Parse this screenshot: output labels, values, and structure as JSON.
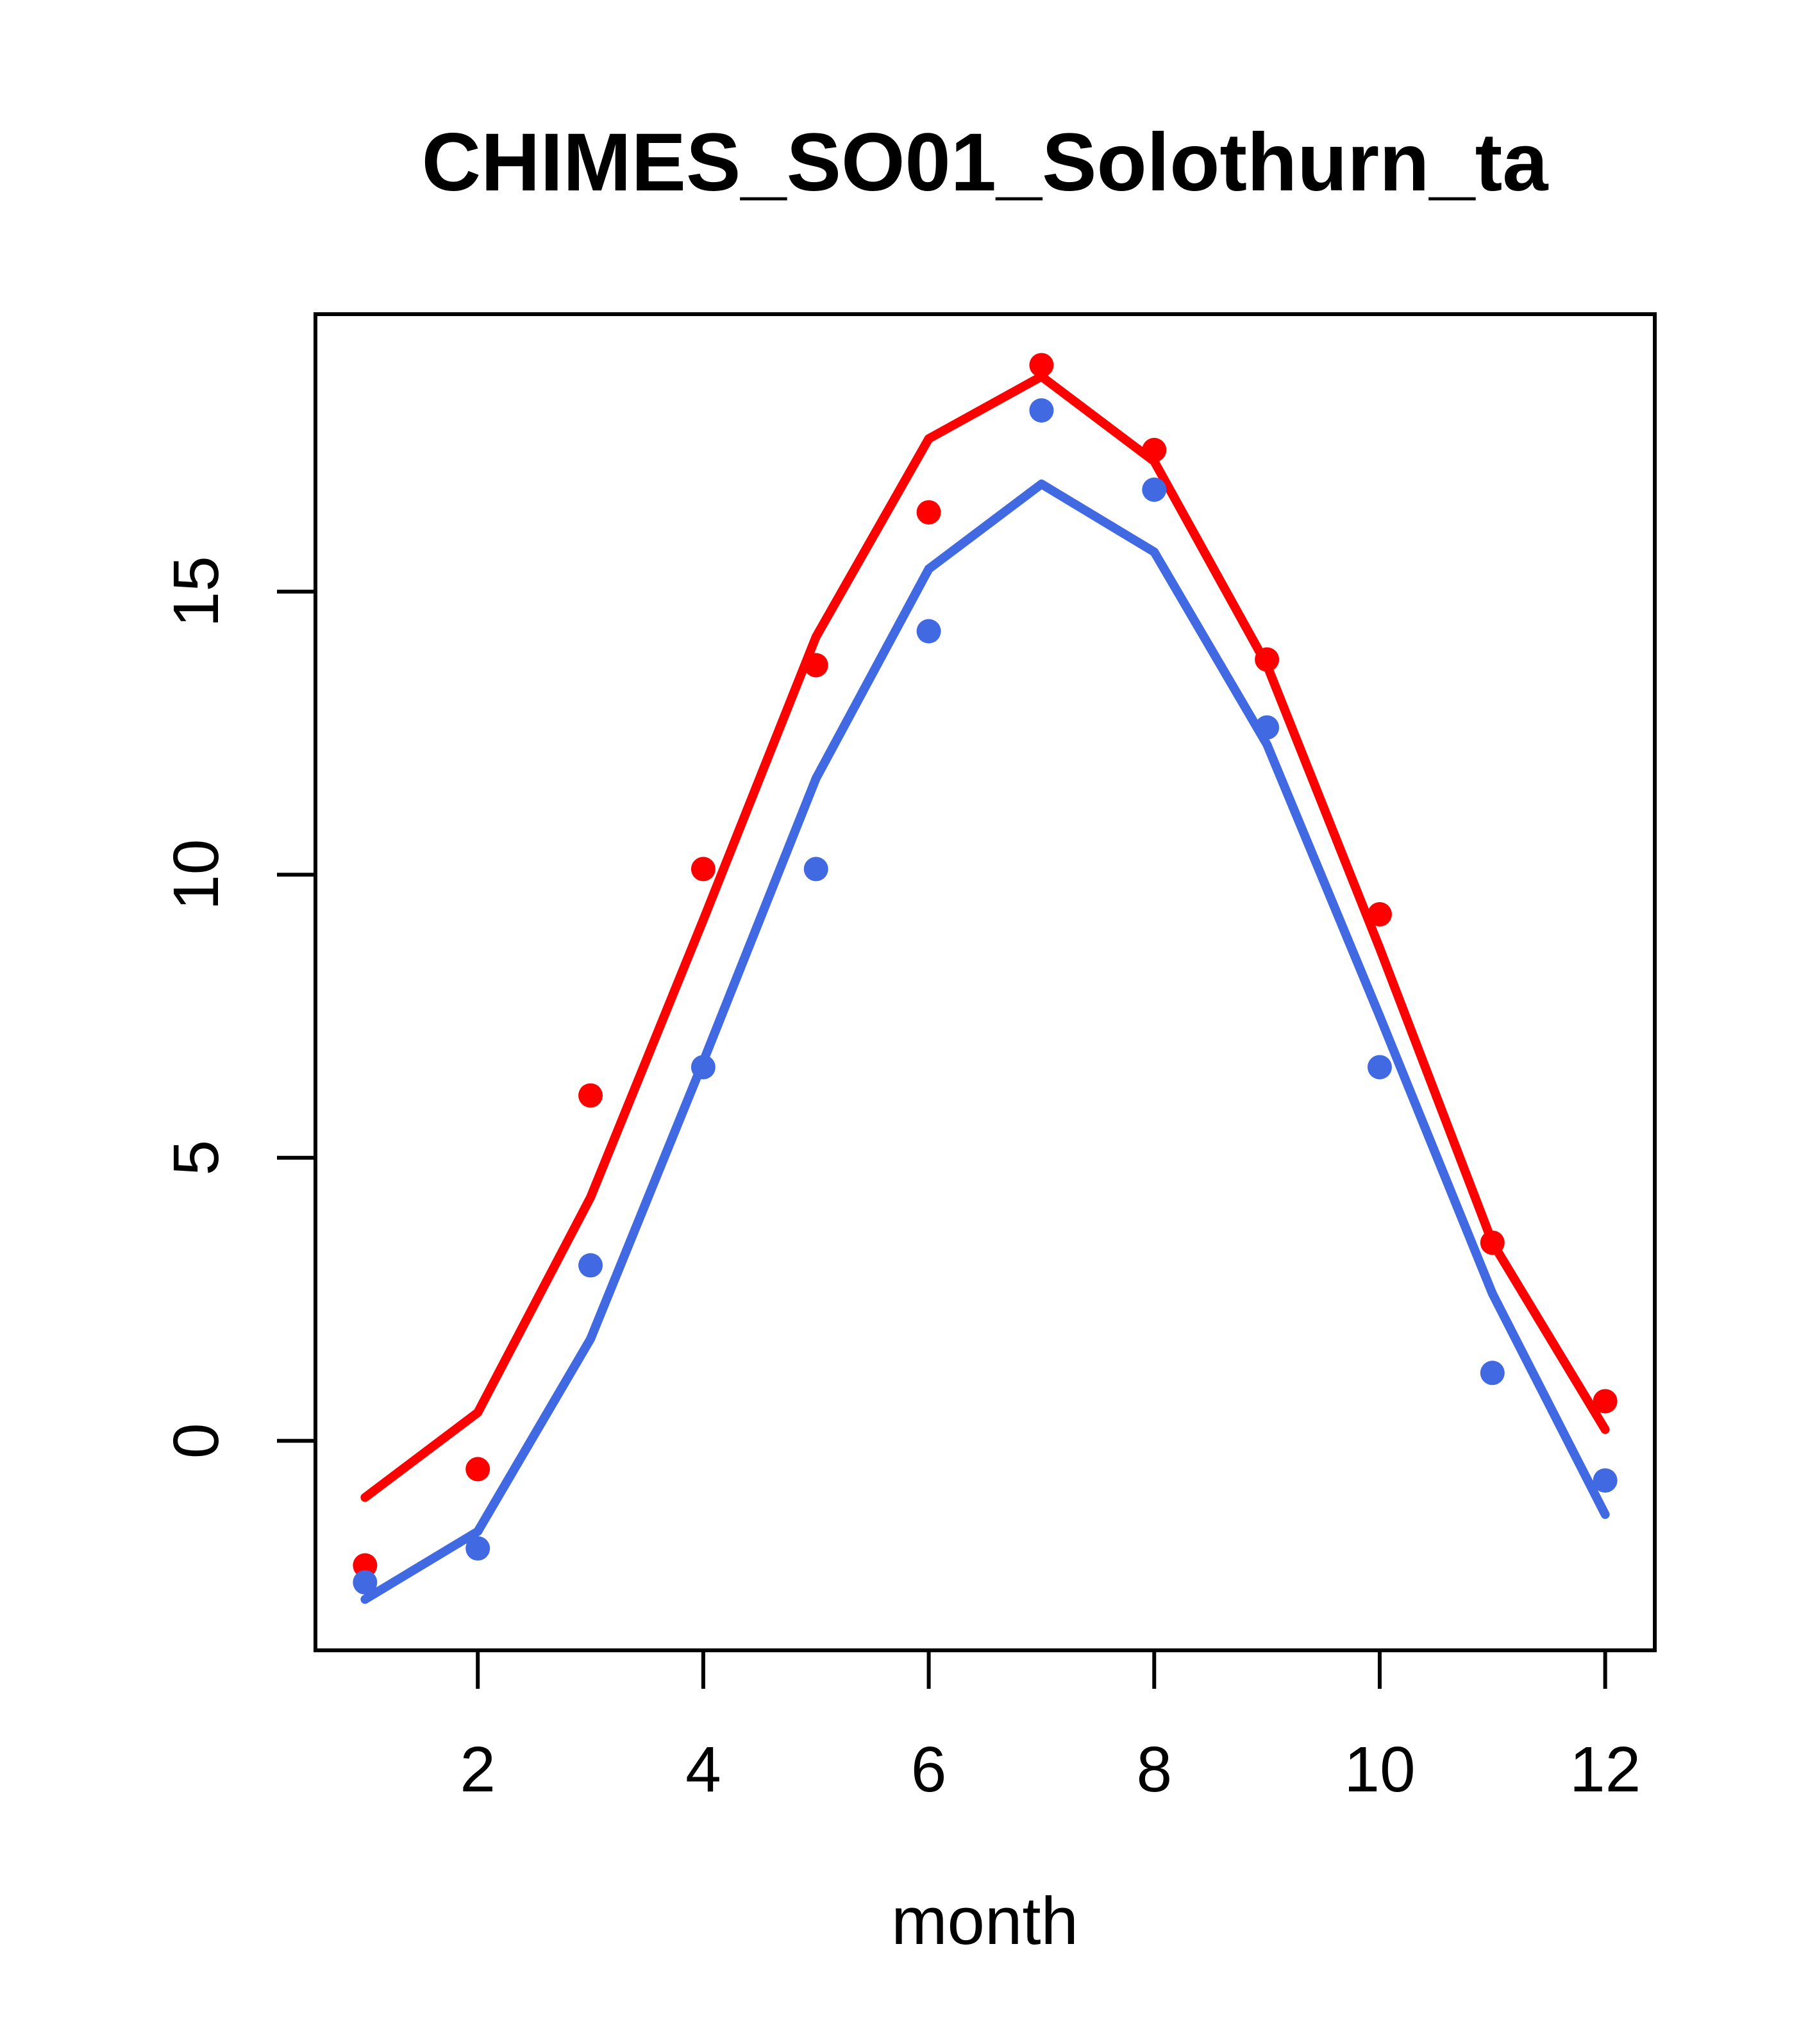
{
  "chart_data": {
    "type": "line",
    "title": "CHIMES_SO01_Solothurn_ta",
    "xlabel": "month",
    "ylabel": "",
    "x": [
      1,
      2,
      3,
      4,
      5,
      6,
      7,
      8,
      9,
      10,
      11,
      12
    ],
    "x_ticks": [
      "2",
      "4",
      "6",
      "8",
      "10",
      "12"
    ],
    "x_tick_values": [
      2,
      4,
      6,
      8,
      10,
      12
    ],
    "y_ticks": [
      "0",
      "5",
      "10",
      "15"
    ],
    "y_tick_values": [
      0,
      5,
      10,
      15
    ],
    "xlim": [
      0.56,
      12.44
    ],
    "ylim": [
      -3.7,
      19.9
    ],
    "grid": false,
    "legend_position": "none",
    "colors": {
      "red_series": "#ff0000",
      "blue_series": "#4169e1",
      "axis": "#000000",
      "background": "#ffffff"
    },
    "series": [
      {
        "name": "red-line",
        "draw": "line",
        "color": "#ff0000",
        "values": [
          -1.0,
          0.5,
          4.3,
          9.2,
          14.2,
          17.7,
          18.8,
          17.3,
          13.7,
          8.7,
          3.5,
          0.2
        ]
      },
      {
        "name": "blue-line",
        "draw": "line",
        "color": "#4169e1",
        "values": [
          -2.8,
          -1.6,
          1.8,
          6.7,
          11.7,
          15.4,
          16.9,
          15.7,
          12.3,
          7.5,
          2.6,
          -1.3
        ]
      },
      {
        "name": "red-points",
        "draw": "points",
        "color": "#ff0000",
        "values": [
          -2.2,
          -0.5,
          6.1,
          10.1,
          13.7,
          16.4,
          19.0,
          17.5,
          13.8,
          9.3,
          3.5,
          0.7
        ]
      },
      {
        "name": "blue-points",
        "draw": "points",
        "color": "#4169e1",
        "values": [
          -2.5,
          -1.9,
          3.1,
          6.6,
          10.1,
          14.3,
          18.2,
          16.8,
          12.6,
          6.6,
          1.2,
          -0.7
        ]
      }
    ]
  }
}
